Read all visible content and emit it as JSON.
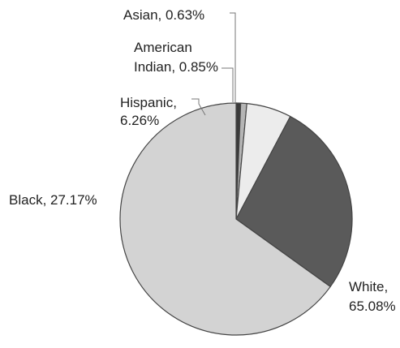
{
  "chart_data": {
    "type": "pie",
    "title": "",
    "slices": [
      {
        "name": "White",
        "value": 65.08,
        "label_lines": [
          "White,",
          "65.08%"
        ],
        "color": "#d3d3d3"
      },
      {
        "name": "Black",
        "value": 27.17,
        "label_lines": [
          "Black, 27.17%"
        ],
        "color": "#5a5a5a"
      },
      {
        "name": "Hispanic",
        "value": 6.26,
        "label_lines": [
          "Hispanic,",
          "6.26%"
        ],
        "color": "#ececec"
      },
      {
        "name": "American Indian",
        "value": 0.85,
        "label_lines": [
          "American",
          "Indian, 0.85%"
        ],
        "color": "#b5b5b5"
      },
      {
        "name": "Asian",
        "value": 0.63,
        "label_lines": [
          "Asian, 0.63%"
        ],
        "color": "#3a3a3a"
      }
    ],
    "start_angle": "12 o'clock",
    "direction": "clockwise",
    "legend": "none",
    "slice_outline_color": "#444444"
  }
}
